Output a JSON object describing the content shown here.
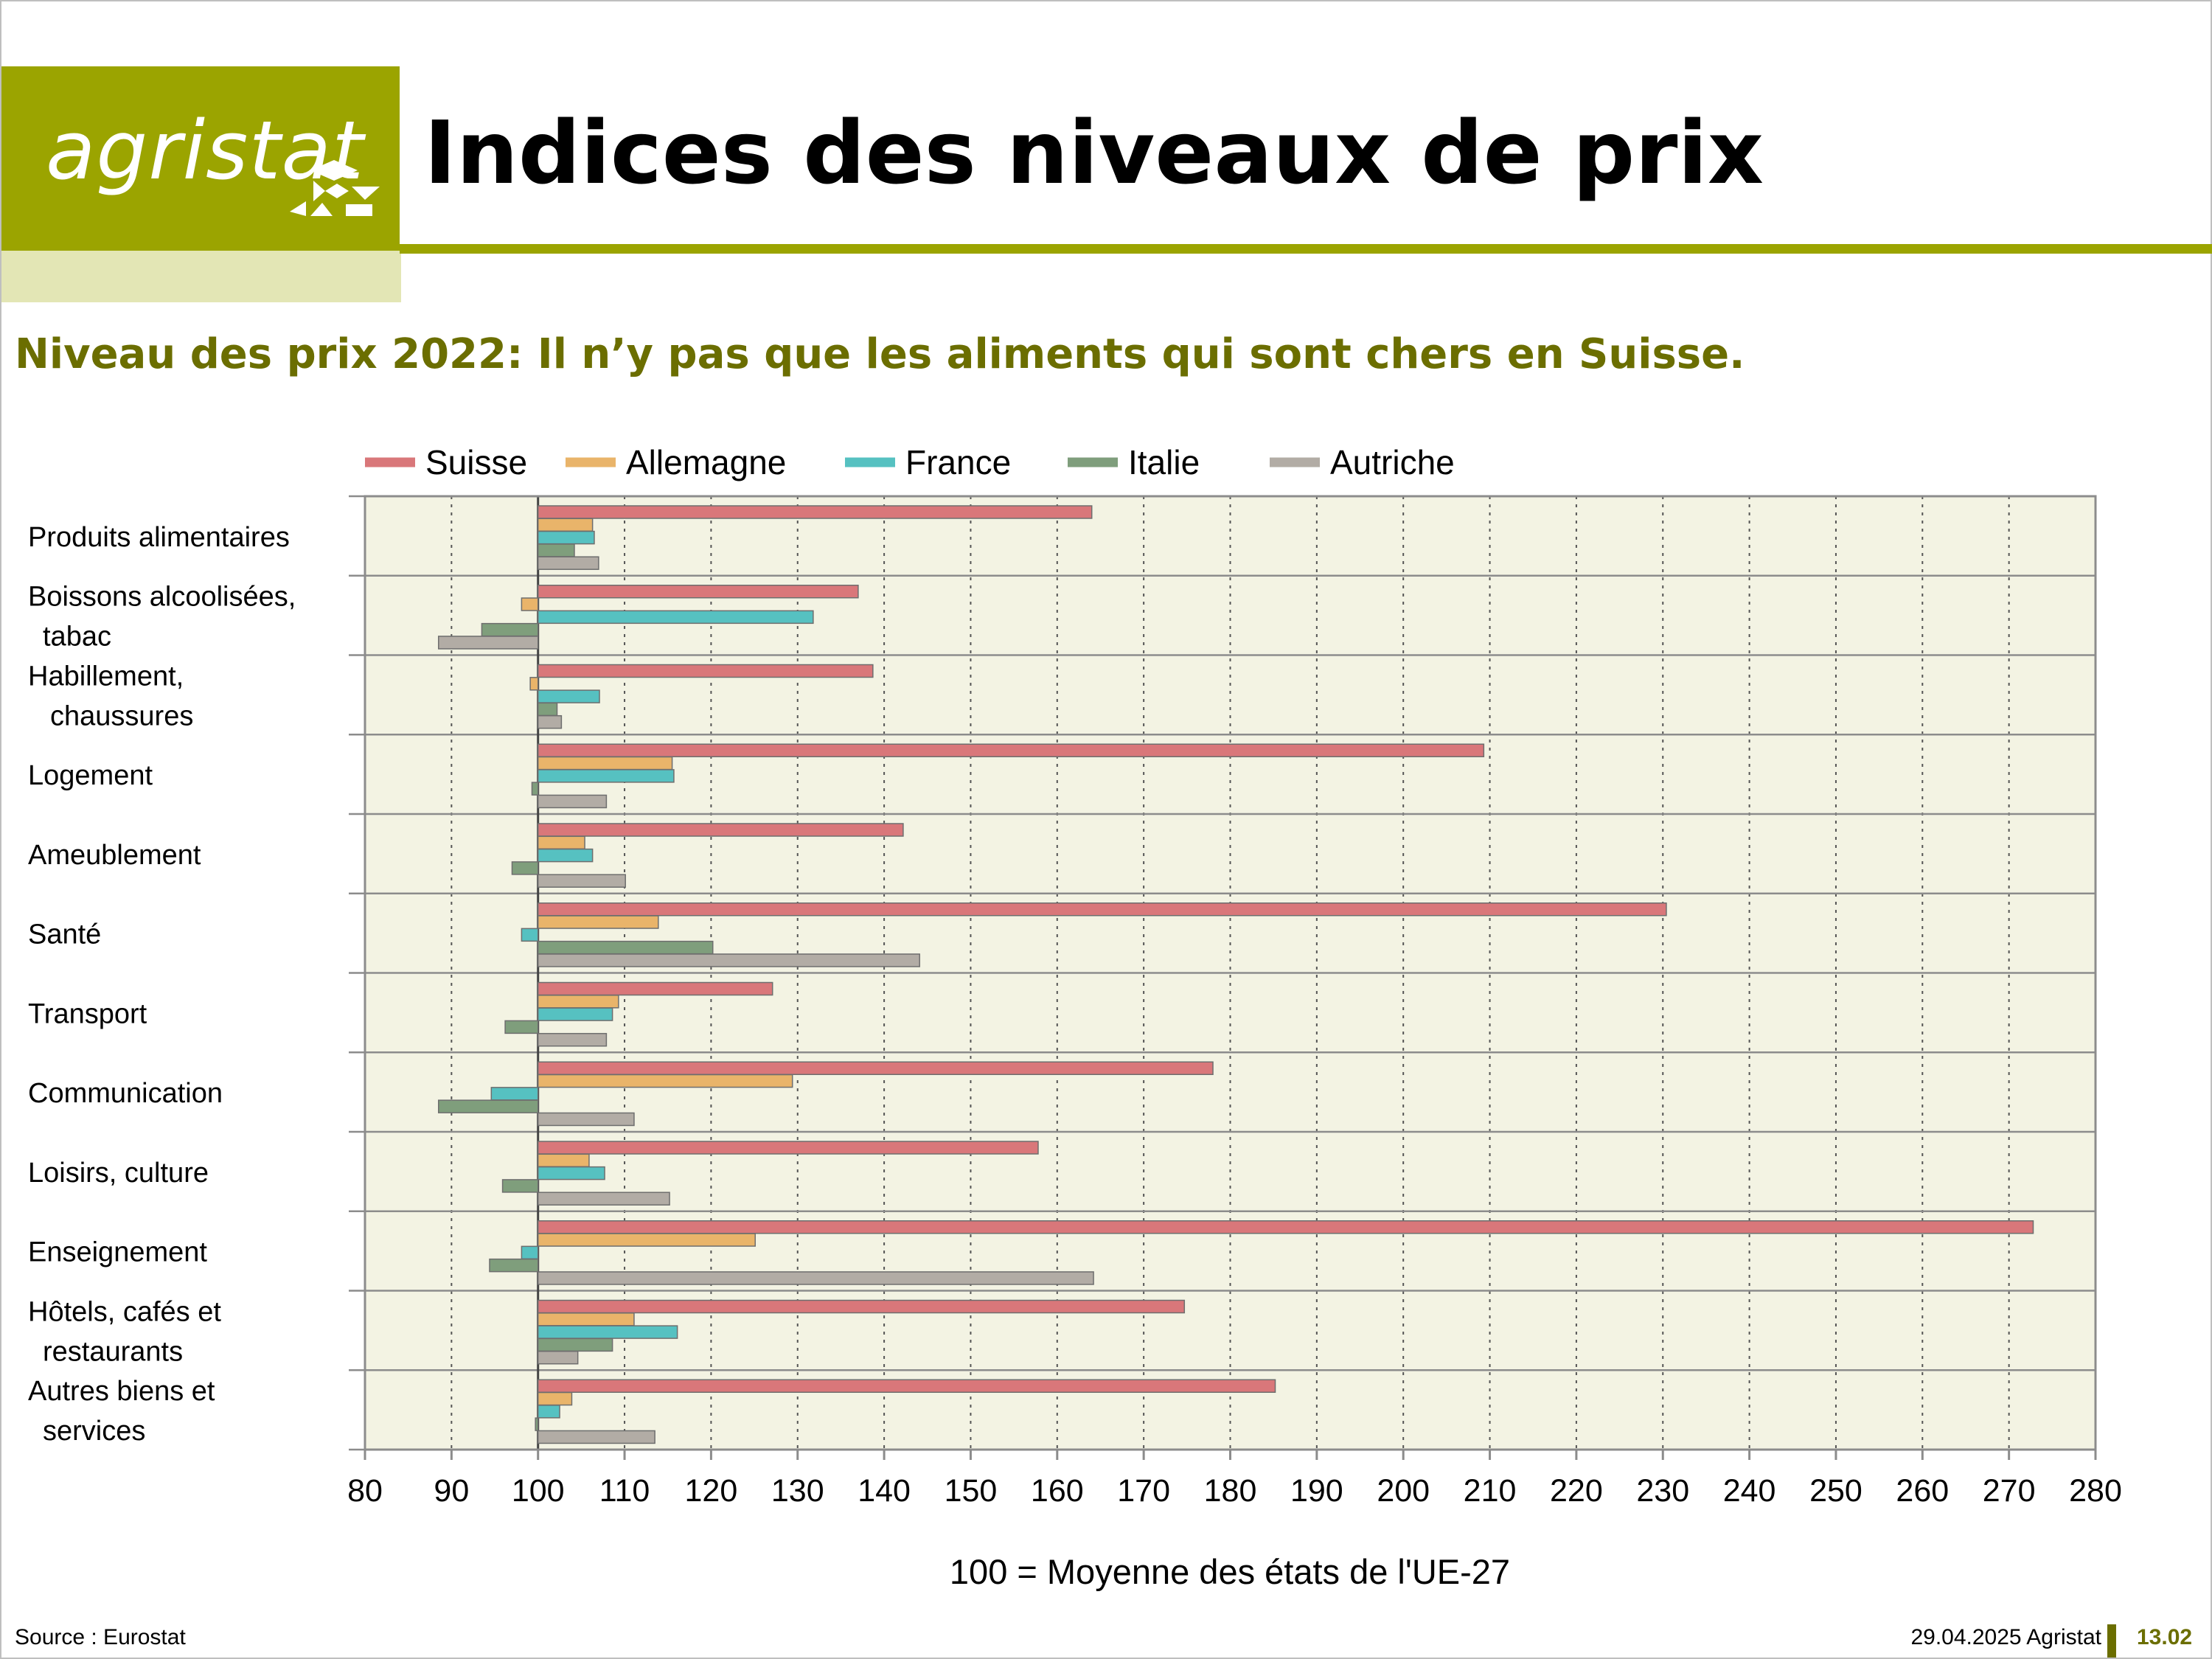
{
  "header": {
    "logo_text": "agristat",
    "title": "Indices des niveaux de prix",
    "subtitle": "Niveau des prix 2022: Il n’y pas que les aliments qui sont chers en Suisse."
  },
  "footer": {
    "source": "Source : Eurostat",
    "date_org": "29.04.2025 Agristat",
    "page": "13.02"
  },
  "colors": {
    "brand": "#9ba400",
    "brand_light": "#e3e6b5",
    "subtitle": "#6b6e00",
    "plot_bg": "#f3f3e3"
  },
  "chart_data": {
    "type": "bar",
    "orientation": "horizontal",
    "baseline": 100,
    "xlabel": "100 = Moyenne des états de l'UE-27",
    "xlim": [
      80,
      280
    ],
    "xticks": [
      80,
      90,
      100,
      110,
      120,
      130,
      140,
      150,
      160,
      170,
      180,
      190,
      200,
      210,
      220,
      230,
      240,
      250,
      260,
      270,
      280
    ],
    "grid": "vertical dotted",
    "legend_position": "top",
    "categories": [
      [
        "Produits alimentaires"
      ],
      [
        "Boissons alcoolisées,",
        "tabac"
      ],
      [
        "Habillement,",
        "chaussures"
      ],
      [
        "Logement"
      ],
      [
        "Ameublement"
      ],
      [
        "Santé"
      ],
      [
        "Transport"
      ],
      [
        "Communication"
      ],
      [
        "Loisirs, culture"
      ],
      [
        "Enseignement"
      ],
      [
        "Hôtels, cafés et",
        "restaurants"
      ],
      [
        "Autres biens et",
        "services"
      ]
    ],
    "series": [
      {
        "name": "Suisse",
        "color": "#d9777a",
        "values": [
          164,
          137,
          138.7,
          209.3,
          142.2,
          230.4,
          127.1,
          178,
          157.8,
          272.8,
          174.7,
          185.2
        ]
      },
      {
        "name": "Allemagne",
        "color": "#e9b46a",
        "values": [
          106.3,
          98.1,
          99.1,
          115.5,
          105.4,
          113.9,
          109.3,
          129.4,
          105.9,
          125.1,
          111.1,
          103.9
        ]
      },
      {
        "name": "France",
        "color": "#56c1c1",
        "values": [
          106.5,
          131.8,
          107.1,
          115.7,
          106.3,
          98.1,
          108.6,
          94.6,
          107.7,
          98.1,
          116.1,
          102.5
        ]
      },
      {
        "name": "Italie",
        "color": "#7f9e7c",
        "values": [
          104.2,
          93.5,
          102.2,
          99.3,
          97,
          120.2,
          96.2,
          88.5,
          95.9,
          94.4,
          108.6,
          99.7
        ]
      },
      {
        "name": "Autriche",
        "color": "#b2aca5",
        "values": [
          107,
          88.5,
          102.7,
          107.9,
          110.1,
          144.1,
          107.9,
          111.1,
          115.2,
          164.2,
          104.6,
          113.5
        ]
      }
    ]
  }
}
